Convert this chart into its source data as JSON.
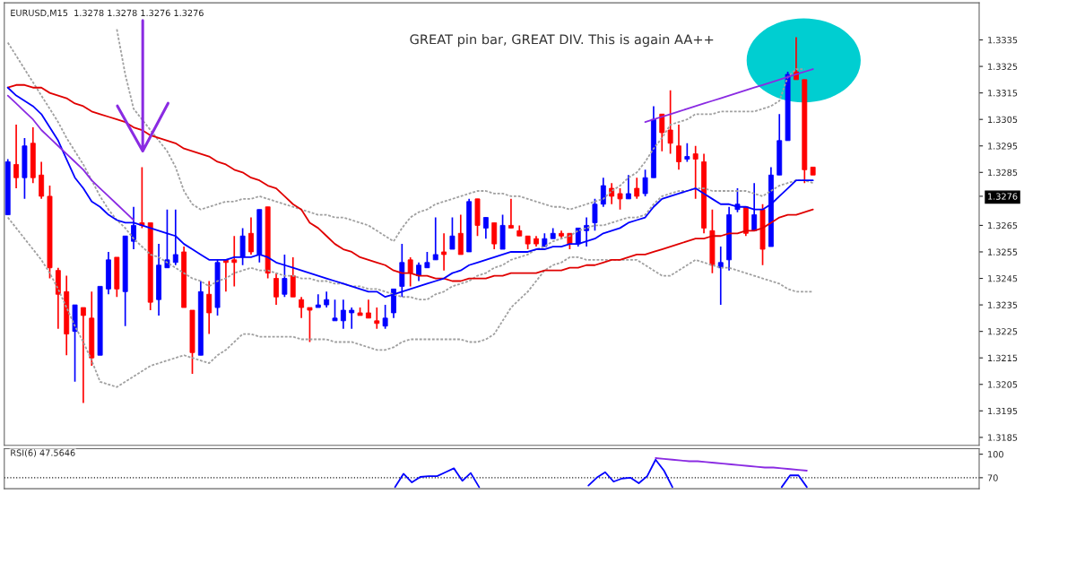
{
  "chart_data": [
    {
      "type": "candlestick",
      "title": "EURUSD,M15  1.3278 1.3278 1.3276 1.3276",
      "annotations": [
        "GREAT pin bar, GREAT DIV. This is again AA++"
      ],
      "categories": [
        null,
        null,
        null,
        null,
        null,
        null,
        null,
        null,
        null,
        null,
        null,
        null,
        null,
        null,
        null,
        null,
        null,
        null,
        null,
        null,
        null,
        null,
        null,
        null,
        null,
        null,
        null,
        null,
        null,
        null,
        null,
        null,
        null,
        null,
        null,
        null,
        null,
        null,
        null,
        null,
        null,
        null,
        null,
        null,
        null,
        null,
        null,
        null,
        null,
        null,
        null,
        null,
        null,
        null,
        null,
        null,
        null,
        null,
        null,
        null,
        null,
        null,
        null,
        null,
        null,
        null,
        null,
        null,
        null,
        null,
        null,
        null,
        null,
        null,
        null,
        null,
        null,
        null,
        null,
        null,
        null,
        null,
        null,
        null,
        null,
        null,
        null,
        null,
        null,
        null,
        null,
        null,
        null,
        null,
        null,
        null,
        null
      ],
      "ohlc": [
        [
          1.3269,
          1.329,
          1.3269,
          1.3289
        ],
        [
          1.3288,
          1.3303,
          1.3279,
          1.3283
        ],
        [
          1.3283,
          1.3298,
          1.3275,
          1.3295
        ],
        [
          1.3296,
          1.3302,
          1.3281,
          1.3283
        ],
        [
          1.3284,
          1.3289,
          1.3275,
          1.3276
        ],
        [
          1.3276,
          1.328,
          1.3245,
          1.3249
        ],
        [
          1.3248,
          1.3249,
          1.3226,
          1.3239
        ],
        [
          1.324,
          1.3246,
          1.3216,
          1.3224
        ],
        [
          1.3225,
          1.3235,
          1.3206,
          1.3235
        ],
        [
          1.3234,
          1.3234,
          1.3198,
          1.3231
        ],
        [
          1.323,
          1.324,
          1.3212,
          1.3215
        ],
        [
          1.3216,
          1.3242,
          1.3216,
          1.3242
        ],
        [
          1.3241,
          1.3255,
          1.3239,
          1.3252
        ],
        [
          1.3253,
          1.3253,
          1.3238,
          1.3241
        ],
        [
          1.324,
          1.3261,
          1.3227,
          1.3261
        ],
        [
          1.3259,
          1.3272,
          1.3256,
          1.3265
        ],
        [
          1.3266,
          1.3287,
          1.3264,
          1.3265
        ],
        [
          1.3266,
          1.3266,
          1.3233,
          1.3236
        ],
        [
          1.3237,
          1.3258,
          1.3231,
          1.325
        ],
        [
          1.3249,
          1.3271,
          1.3249,
          1.3252
        ],
        [
          1.3251,
          1.3271,
          1.325,
          1.3254
        ],
        [
          1.3255,
          1.3257,
          1.3234,
          1.3234
        ],
        [
          1.3233,
          1.3233,
          1.3209,
          1.3217
        ],
        [
          1.3216,
          1.3244,
          1.3216,
          1.324
        ],
        [
          1.3239,
          1.3244,
          1.3224,
          1.3232
        ],
        [
          1.3234,
          1.3252,
          1.3231,
          1.3251
        ],
        [
          1.3252,
          1.3252,
          1.324,
          1.3251
        ],
        [
          1.3252,
          1.3261,
          1.3242,
          1.3251
        ],
        [
          1.3253,
          1.3264,
          1.325,
          1.3261
        ],
        [
          1.3262,
          1.3268,
          1.3254,
          1.3255
        ],
        [
          1.3254,
          1.3271,
          1.3251,
          1.3271
        ],
        [
          1.3272,
          1.3272,
          1.3245,
          1.3247
        ],
        [
          1.3245,
          1.3247,
          1.3235,
          1.3238
        ],
        [
          1.3239,
          1.3254,
          1.3238,
          1.3245
        ],
        [
          1.3246,
          1.3253,
          1.3238,
          1.3238
        ],
        [
          1.3237,
          1.3238,
          1.323,
          1.3234
        ],
        [
          1.3234,
          1.3234,
          1.3221,
          1.3233
        ],
        [
          1.3234,
          1.3239,
          1.3234,
          1.3235
        ],
        [
          1.3235,
          1.324,
          1.3234,
          1.3237
        ],
        [
          1.3229,
          1.3237,
          1.3229,
          1.323
        ],
        [
          1.3229,
          1.3237,
          1.3226,
          1.3233
        ],
        [
          1.3232,
          1.3234,
          1.3226,
          1.3233
        ],
        [
          1.3232,
          1.3234,
          1.3231,
          1.3231
        ],
        [
          1.3232,
          1.3237,
          1.323,
          1.323
        ],
        [
          1.3229,
          1.3234,
          1.3226,
          1.3228
        ],
        [
          1.3227,
          1.3235,
          1.3226,
          1.323
        ],
        [
          1.3232,
          1.3241,
          1.323,
          1.3241
        ],
        [
          1.3242,
          1.3258,
          1.3238,
          1.3251
        ],
        [
          1.3252,
          1.3253,
          1.3242,
          1.3247
        ],
        [
          1.3246,
          1.3251,
          1.3244,
          1.325
        ],
        [
          1.3249,
          1.3255,
          1.3249,
          1.3251
        ],
        [
          1.3252,
          1.3268,
          1.3252,
          1.3254
        ],
        [
          1.3255,
          1.3262,
          1.3248,
          1.3254
        ],
        [
          1.3256,
          1.3268,
          1.3256,
          1.3261
        ],
        [
          1.3262,
          1.3269,
          1.3254,
          1.3254
        ],
        [
          1.3255,
          1.3275,
          1.3255,
          1.3274
        ],
        [
          1.3275,
          1.3275,
          1.3261,
          1.3265
        ],
        [
          1.3264,
          1.3268,
          1.326,
          1.3268
        ],
        [
          1.3266,
          1.3266,
          1.3256,
          1.3258
        ],
        [
          1.3256,
          1.3269,
          1.3256,
          1.3265
        ],
        [
          1.3265,
          1.3275,
          1.3264,
          1.3264
        ],
        [
          1.3263,
          1.3265,
          1.3261,
          1.3261
        ],
        [
          1.3261,
          1.3261,
          1.3256,
          1.3258
        ],
        [
          1.326,
          1.3261,
          1.3257,
          1.3258
        ],
        [
          1.3257,
          1.3262,
          1.3257,
          1.326
        ],
        [
          1.326,
          1.3264,
          1.326,
          1.3262
        ],
        [
          1.3262,
          1.3263,
          1.326,
          1.3261
        ],
        [
          1.3262,
          1.3262,
          1.3256,
          1.3258
        ],
        [
          1.3258,
          1.3264,
          1.3257,
          1.3264
        ],
        [
          1.3263,
          1.3268,
          1.3257,
          1.3265
        ],
        [
          1.3266,
          1.3275,
          1.3263,
          1.3273
        ],
        [
          1.3273,
          1.3283,
          1.3272,
          1.328
        ],
        [
          1.3279,
          1.3281,
          1.3273,
          1.3276
        ],
        [
          1.3277,
          1.3279,
          1.3271,
          1.3275
        ],
        [
          1.3275,
          1.3284,
          1.3275,
          1.3277
        ],
        [
          1.3279,
          1.3283,
          1.3275,
          1.3276
        ],
        [
          1.3277,
          1.3286,
          1.3276,
          1.3283
        ],
        [
          1.3283,
          1.331,
          1.3283,
          1.3305
        ],
        [
          1.3307,
          1.3307,
          1.3293,
          1.33
        ],
        [
          1.3301,
          1.3316,
          1.3292,
          1.3296
        ],
        [
          1.3295,
          1.3303,
          1.3286,
          1.3289
        ],
        [
          1.329,
          1.3296,
          1.3289,
          1.3291
        ],
        [
          1.3292,
          1.3295,
          1.3275,
          1.329
        ],
        [
          1.3289,
          1.3292,
          1.3262,
          1.3264
        ],
        [
          1.3263,
          1.3271,
          1.3247,
          1.325
        ],
        [
          1.3249,
          1.3257,
          1.3235,
          1.3251
        ],
        [
          1.3252,
          1.3272,
          1.3248,
          1.3269
        ],
        [
          1.3271,
          1.3279,
          1.327,
          1.3273
        ],
        [
          1.3272,
          1.3272,
          1.3261,
          1.3262
        ],
        [
          1.3263,
          1.3281,
          1.3263,
          1.3269
        ],
        [
          1.3271,
          1.3273,
          1.325,
          1.3256
        ],
        [
          1.3257,
          1.3287,
          1.3257,
          1.3284
        ],
        [
          1.3284,
          1.3307,
          1.3284,
          1.3297
        ],
        [
          1.3297,
          1.3323,
          1.3297,
          1.3322
        ],
        [
          1.3323,
          1.3336,
          1.332,
          1.332
        ],
        [
          1.332,
          1.332,
          1.3281,
          1.3286
        ],
        [
          1.3287,
          1.3287,
          1.3284,
          1.3284
        ]
      ],
      "colors": [
        "#0000ff",
        "#ff0000",
        "#0000ff",
        "#ff0000",
        "#ff0000",
        "#ff0000",
        "#ff0000",
        "#ff0000",
        "#0000ff",
        "#ff0000",
        "#ff0000",
        "#0000ff",
        "#0000ff",
        "#ff0000",
        "#0000ff",
        "#0000ff",
        "#ff0000",
        "#ff0000",
        "#0000ff",
        "#0000ff",
        "#0000ff",
        "#ff0000",
        "#ff0000",
        "#0000ff",
        "#ff0000",
        "#0000ff",
        "#ff0000",
        "#ff0000",
        "#0000ff",
        "#ff0000",
        "#0000ff",
        "#ff0000",
        "#ff0000",
        "#0000ff",
        "#ff0000",
        "#ff0000",
        "#ff0000",
        "#0000ff",
        "#0000ff",
        "#0000ff",
        "#0000ff",
        "#0000ff",
        "#ff0000",
        "#ff0000",
        "#ff0000",
        "#0000ff",
        "#0000ff",
        "#0000ff",
        "#ff0000",
        "#0000ff",
        "#0000ff",
        "#0000ff",
        "#ff0000",
        "#0000ff",
        "#ff0000",
        "#0000ff",
        "#ff0000",
        "#0000ff",
        "#ff0000",
        "#0000ff",
        "#ff0000",
        "#ff0000",
        "#ff0000",
        "#ff0000",
        "#0000ff",
        "#0000ff",
        "#ff0000",
        "#ff0000",
        "#0000ff",
        "#0000ff",
        "#0000ff",
        "#0000ff",
        "#ff0000",
        "#ff0000",
        "#0000ff",
        "#ff0000",
        "#0000ff",
        "#0000ff",
        "#ff0000",
        "#ff0000",
        "#ff0000",
        "#0000ff",
        "#ff0000",
        "#ff0000",
        "#ff0000",
        "#0000ff",
        "#0000ff",
        "#0000ff",
        "#ff0000",
        "#0000ff",
        "#ff0000",
        "#0000ff",
        "#0000ff",
        "#0000ff",
        "#ff0000",
        "#ff0000",
        "#ff0000"
      ],
      "series": [
        {
          "type": "line",
          "color": "#a0a0a0",
          "line_style": "dashed",
          "values": [
            null,
            null,
            null,
            null,
            null,
            null,
            null,
            null,
            null,
            null,
            null,
            null,
            null,
            1.3339,
            1.3322,
            1.3309,
            1.3305,
            1.3301,
            1.3297,
            1.3293,
            1.3287,
            1.3278,
            1.3273,
            1.3271,
            1.3272,
            1.3273,
            1.3274,
            1.3274,
            1.3275,
            1.3275,
            1.3276,
            1.3275,
            1.3274,
            1.3273,
            1.3272,
            1.3271,
            1.327,
            1.3269,
            1.3269,
            1.3268,
            1.3268,
            1.3267,
            1.3266,
            1.3265,
            1.3263,
            1.3261,
            1.3259,
            1.3264,
            1.3268,
            1.327,
            1.3271,
            1.3273,
            1.3274,
            1.3275,
            1.3276,
            1.3277,
            1.3278,
            1.3278,
            1.3277,
            1.3277,
            1.3276,
            1.3276,
            1.3275,
            1.3274,
            1.3273,
            1.3272,
            1.3272,
            1.3271,
            1.3272,
            1.3273,
            1.3274,
            1.3275,
            1.3278,
            1.328,
            1.3283,
            1.3285,
            1.3289,
            1.3294,
            1.3298,
            1.3303,
            1.3304,
            1.3305,
            1.3307,
            1.3307,
            1.3307,
            1.3308,
            1.3308,
            1.3308,
            1.3308,
            1.3308,
            1.3309,
            1.331,
            1.3312,
            1.3321,
            1.3324,
            1.3324,
            null
          ]
        },
        {
          "type": "line",
          "color": "#a0a0a0",
          "line_style": "dashed",
          "values": [
            1.3334,
            1.3329,
            1.3324,
            1.3319,
            1.3314,
            1.3309,
            1.3304,
            1.3298,
            1.3293,
            1.3288,
            1.3282,
            1.3276,
            1.3271,
            1.3267,
            1.3264,
            1.326,
            1.3257,
            1.3254,
            1.3253,
            1.3251,
            1.3249,
            1.3247,
            1.3245,
            1.3244,
            1.3242,
            1.3244,
            1.3245,
            1.3247,
            1.3248,
            1.3249,
            1.3248,
            1.3248,
            1.3247,
            1.3246,
            1.3246,
            1.3245,
            1.3245,
            1.3244,
            1.3244,
            1.3243,
            1.3243,
            1.3242,
            1.3242,
            1.3241,
            1.3241,
            1.324,
            1.3239,
            1.3238,
            1.3238,
            1.3237,
            1.3237,
            1.3239,
            1.324,
            1.3242,
            1.3243,
            1.3244,
            1.3246,
            1.3247,
            1.3249,
            1.325,
            1.3252,
            1.3253,
            1.3254,
            1.3256,
            1.3257,
            1.3259,
            1.326,
            1.3261,
            1.3263,
            1.3264,
            1.3265,
            1.3265,
            1.3266,
            1.3267,
            1.3268,
            1.3268,
            1.3269,
            1.3273,
            1.3276,
            1.3277,
            1.3278,
            1.3278,
            1.3279,
            1.3279,
            1.3278,
            1.3278,
            1.3278,
            1.3278,
            1.3278,
            1.3277,
            1.3276,
            1.3278,
            1.328,
            1.3281,
            1.3282,
            1.3282,
            1.3281
          ]
        },
        {
          "type": "line",
          "color": "#a0a0a0",
          "line_style": "dashed",
          "values": [
            1.3268,
            1.3264,
            1.326,
            1.3256,
            1.3252,
            1.3247,
            1.3241,
            1.3234,
            1.3227,
            1.3221,
            1.3214,
            1.3206,
            1.3205,
            1.3204,
            1.3206,
            1.3208,
            1.321,
            1.3212,
            1.3213,
            1.3214,
            1.3215,
            1.3216,
            1.3215,
            1.3214,
            1.3213,
            1.3216,
            1.3218,
            1.3221,
            1.3224,
            1.3224,
            1.3223,
            1.3223,
            1.3223,
            1.3223,
            1.3223,
            1.3222,
            1.3222,
            1.3222,
            1.3222,
            1.3221,
            1.3221,
            1.3221,
            1.322,
            1.3219,
            1.3218,
            1.3218,
            1.3219,
            1.3221,
            1.3222,
            1.3222,
            1.3222,
            1.3222,
            1.3222,
            1.3222,
            1.3222,
            1.3221,
            1.3221,
            1.3222,
            1.3224,
            1.3229,
            1.3234,
            1.3237,
            1.324,
            1.3244,
            1.3248,
            1.325,
            1.3251,
            1.3253,
            1.3253,
            1.3252,
            1.3252,
            1.3252,
            1.3252,
            1.3252,
            1.3252,
            1.3252,
            1.325,
            1.3248,
            1.3246,
            1.3246,
            1.3248,
            1.325,
            1.3252,
            1.3251,
            1.325,
            1.3249,
            1.3249,
            1.3248,
            1.3247,
            1.3246,
            1.3245,
            1.3244,
            1.3243,
            1.3241,
            1.324,
            1.324,
            1.324
          ]
        },
        {
          "type": "line",
          "color": "#e00000",
          "line_style": "solid",
          "values": [
            1.3317,
            1.3318,
            1.3318,
            1.3317,
            1.3317,
            1.3315,
            1.3314,
            1.3313,
            1.3311,
            1.331,
            1.3308,
            1.3307,
            1.3306,
            1.3305,
            1.3304,
            1.3302,
            1.3301,
            1.3299,
            1.3298,
            1.3297,
            1.3296,
            1.3294,
            1.3293,
            1.3292,
            1.3291,
            1.3289,
            1.3288,
            1.3286,
            1.3285,
            1.3283,
            1.3282,
            1.328,
            1.3279,
            1.3276,
            1.3273,
            1.3271,
            1.3266,
            1.3264,
            1.3261,
            1.3258,
            1.3256,
            1.3255,
            1.3253,
            1.3252,
            1.3251,
            1.325,
            1.3248,
            1.3247,
            1.3247,
            1.3246,
            1.3246,
            1.3245,
            1.3245,
            1.3244,
            1.3244,
            1.3245,
            1.3245,
            1.3245,
            1.3246,
            1.3246,
            1.3247,
            1.3247,
            1.3247,
            1.3247,
            1.3248,
            1.3248,
            1.3248,
            1.3249,
            1.3249,
            1.325,
            1.325,
            1.3251,
            1.3252,
            1.3252,
            1.3253,
            1.3254,
            1.3254,
            1.3255,
            1.3256,
            1.3257,
            1.3258,
            1.3259,
            1.326,
            1.326,
            1.3261,
            1.3261,
            1.3262,
            1.3262,
            1.3263,
            1.3263,
            1.3264,
            1.3266,
            1.3268,
            1.3269,
            1.3269,
            1.327,
            1.3271
          ]
        },
        {
          "type": "line",
          "color": "#0000ff",
          "line_style": "solid",
          "values": [
            1.3317,
            1.3314,
            1.3312,
            1.331,
            1.3307,
            1.3302,
            1.3297,
            1.329,
            1.3283,
            1.3279,
            1.3274,
            1.3272,
            1.3269,
            1.3267,
            1.3266,
            1.3266,
            1.3265,
            1.3264,
            1.3263,
            1.3262,
            1.3261,
            1.3258,
            1.3256,
            1.3254,
            1.3252,
            1.3252,
            1.3252,
            1.3253,
            1.3253,
            1.3253,
            1.3254,
            1.3253,
            1.3251,
            1.325,
            1.3249,
            1.3248,
            1.3247,
            1.3246,
            1.3245,
            1.3244,
            1.3243,
            1.3242,
            1.3241,
            1.324,
            1.324,
            1.3238,
            1.3239,
            1.324,
            1.3241,
            1.3242,
            1.3243,
            1.3244,
            1.3245,
            1.3247,
            1.3248,
            1.325,
            1.3251,
            1.3252,
            1.3253,
            1.3254,
            1.3255,
            1.3255,
            1.3255,
            1.3256,
            1.3256,
            1.3257,
            1.3257,
            1.3258,
            1.3258,
            1.3259,
            1.326,
            1.3262,
            1.3263,
            1.3264,
            1.3266,
            1.3267,
            1.3268,
            1.3272,
            1.3275,
            1.3276,
            1.3277,
            1.3278,
            1.3279,
            1.3277,
            1.3275,
            1.3273,
            1.3273,
            1.3272,
            1.3272,
            1.3271,
            1.3271,
            1.3273,
            1.3276,
            1.3279,
            1.3282,
            1.3282,
            1.3282
          ]
        },
        {
          "type": "line",
          "color": "#8a2be2",
          "line_style": "solid",
          "values": [
            1.3314,
            1.3311,
            1.3308,
            1.3305,
            1.3301,
            1.3298,
            1.3295,
            1.3292,
            1.3289,
            1.3286,
            1.3282,
            1.3279,
            1.3276,
            1.3273,
            1.327,
            1.3267,
            null,
            null,
            null,
            null,
            null,
            null,
            null,
            null,
            null,
            null,
            null,
            null,
            null,
            null,
            null,
            null,
            null,
            null,
            null,
            null,
            null,
            null,
            null,
            null,
            null,
            null,
            null,
            null,
            null,
            null,
            null,
            null,
            null,
            null,
            null,
            null,
            null,
            null,
            null,
            null,
            null,
            null,
            null,
            null,
            null,
            null,
            null,
            null,
            null,
            null,
            null,
            null,
            null,
            null,
            null,
            null,
            null,
            null,
            null,
            null,
            null,
            null,
            null,
            null,
            null,
            null,
            null,
            null,
            null,
            null,
            null,
            null,
            null,
            null,
            null,
            null,
            null,
            null,
            null,
            null,
            null
          ]
        },
        {
          "type": "line",
          "color": "#8a2be2",
          "line_style": "solid",
          "values": [
            null,
            null,
            null,
            null,
            null,
            null,
            null,
            null,
            null,
            null,
            null,
            null,
            null,
            null,
            null,
            null,
            null,
            null,
            null,
            null,
            null,
            null,
            null,
            null,
            null,
            null,
            null,
            null,
            null,
            null,
            null,
            null,
            null,
            null,
            null,
            null,
            null,
            null,
            null,
            null,
            null,
            null,
            null,
            null,
            null,
            null,
            null,
            null,
            null,
            null,
            null,
            null,
            null,
            null,
            null,
            null,
            null,
            null,
            null,
            null,
            null,
            null,
            null,
            null,
            null,
            null,
            null,
            null,
            null,
            null,
            null,
            null,
            null,
            null,
            null,
            null,
            1.3304,
            1.3305,
            1.3306,
            1.3307,
            1.3308,
            1.3309,
            1.331,
            1.3311,
            1.3312,
            1.3313,
            1.3314,
            1.3315,
            1.3316,
            1.3317,
            1.3318,
            1.3319,
            1.332,
            1.3321,
            1.3322,
            1.3323,
            1.3324
          ]
        }
      ],
      "ylim": [
        1.3182,
        1.3349
      ],
      "yticks": [
        1.3185,
        1.3195,
        1.3205,
        1.3215,
        1.3225,
        1.3235,
        1.3245,
        1.3255,
        1.3265,
        {
          "value": 1.3276,
          "label": "1.3276"
        },
        1.3285,
        1.3295,
        1.3305,
        1.3315,
        1.3325,
        1.3335
      ],
      "tick_labels": "y",
      "grid": false
    },
    {
      "type": "line",
      "title": "RSI(6) 47.5646",
      "categories": [
        null,
        null,
        null,
        null,
        null,
        null,
        null,
        null,
        null,
        null,
        null,
        null,
        null,
        null,
        null,
        null,
        null,
        null,
        null,
        null,
        null,
        null,
        null,
        null,
        null,
        null,
        null,
        null,
        null,
        null,
        null,
        null,
        null,
        null,
        null,
        null,
        null,
        null,
        null,
        null,
        null,
        null,
        null,
        null,
        null,
        null,
        null,
        null,
        null,
        null,
        null,
        null,
        null,
        null,
        null,
        null,
        null,
        null,
        null,
        null,
        null,
        null,
        null,
        null,
        null,
        null,
        null,
        null,
        null,
        null,
        null,
        null,
        null,
        null,
        null,
        null,
        null,
        null,
        null,
        null,
        null,
        null,
        null,
        null,
        null,
        null,
        null,
        null,
        null,
        null,
        null,
        null,
        null,
        null,
        null,
        null,
        null,
        null,
        null,
        null,
        null,
        null,
        null,
        null,
        null,
        null,
        null,
        null,
        null,
        null,
        null,
        null,
        null,
        null,
        null,
        null
      ],
      "series": [
        {
          "color": "#0000ff",
          "line_style": "solid",
          "values": [
            null,
            null,
            null,
            null,
            null,
            null,
            null,
            null,
            null,
            null,
            null,
            null,
            null,
            null,
            null,
            null,
            null,
            null,
            null,
            null,
            null,
            null,
            null,
            null,
            null,
            null,
            null,
            null,
            null,
            null,
            null,
            null,
            null,
            null,
            null,
            null,
            null,
            null,
            null,
            null,
            null,
            null,
            null,
            null,
            null,
            null,
            58,
            75,
            64,
            71,
            72,
            72,
            77,
            82,
            66,
            76,
            58,
            null,
            null,
            null,
            null,
            null,
            null,
            null,
            null,
            null,
            null,
            null,
            null,
            null,
            null,
            null,
            null,
            null,
            null,
            null,
            null,
            null,
            null,
            null,
            null,
            null,
            null,
            null,
            null,
            null,
            null,
            null,
            null,
            null,
            null,
            null,
            null,
            null,
            null,
            null,
            null,
            null,
            null,
            null,
            null,
            null,
            null,
            null,
            null,
            null,
            null,
            null,
            null,
            null,
            null,
            null,
            null,
            null,
            null,
            null
          ]
        },
        {
          "color": "#0000ff",
          "line_style": "solid",
          "values": [
            null,
            null,
            null,
            null,
            null,
            null,
            null,
            null,
            null,
            null,
            null,
            null,
            null,
            null,
            null,
            null,
            null,
            null,
            null,
            null,
            null,
            null,
            null,
            null,
            null,
            null,
            null,
            null,
            null,
            null,
            null,
            null,
            null,
            null,
            null,
            null,
            null,
            null,
            null,
            null,
            null,
            null,
            null,
            null,
            null,
            null,
            null,
            null,
            null,
            null,
            null,
            null,
            null,
            null,
            null,
            null,
            null,
            null,
            null,
            null,
            null,
            null,
            null,
            null,
            null,
            null,
            null,
            null,
            null,
            60,
            70,
            77,
            65,
            69,
            70,
            63,
            72,
            93,
            79,
            58,
            null,
            null,
            null,
            null,
            null,
            null,
            null,
            null,
            null,
            null,
            null,
            null,
            null,
            null,
            null,
            null,
            null,
            null,
            null,
            null,
            null,
            null,
            null,
            null,
            null,
            null,
            null,
            null,
            null,
            null,
            null,
            null,
            null,
            null,
            null,
            null
          ]
        },
        {
          "color": "#0000ff",
          "line_style": "solid",
          "values": [
            null,
            null,
            null,
            null,
            null,
            null,
            null,
            null,
            null,
            null,
            null,
            null,
            null,
            null,
            null,
            null,
            null,
            null,
            null,
            null,
            null,
            null,
            null,
            null,
            null,
            null,
            null,
            null,
            null,
            null,
            null,
            null,
            null,
            null,
            null,
            null,
            null,
            null,
            null,
            null,
            null,
            null,
            null,
            null,
            null,
            null,
            null,
            null,
            null,
            null,
            null,
            null,
            null,
            null,
            null,
            null,
            null,
            null,
            null,
            null,
            null,
            null,
            null,
            null,
            null,
            null,
            null,
            null,
            null,
            null,
            null,
            null,
            null,
            null,
            null,
            null,
            null,
            null,
            null,
            null,
            null,
            null,
            null,
            null,
            null,
            null,
            null,
            null,
            null,
            null,
            null,
            null,
            58,
            73,
            73,
            58,
            null,
            null,
            null,
            null,
            null,
            null,
            null,
            null,
            null,
            null,
            null,
            null,
            null,
            null,
            null,
            null,
            null,
            null,
            null,
            null
          ]
        },
        {
          "color": "#8a2be2",
          "line_style": "solid",
          "values": [
            null,
            null,
            null,
            null,
            null,
            null,
            null,
            null,
            null,
            null,
            null,
            null,
            null,
            null,
            null,
            null,
            null,
            null,
            null,
            null,
            null,
            null,
            null,
            null,
            null,
            null,
            null,
            null,
            null,
            null,
            null,
            null,
            null,
            null,
            null,
            null,
            null,
            null,
            null,
            null,
            null,
            null,
            null,
            null,
            null,
            null,
            null,
            null,
            null,
            null,
            null,
            null,
            null,
            null,
            null,
            null,
            null,
            null,
            null,
            null,
            null,
            null,
            null,
            null,
            null,
            null,
            null,
            null,
            null,
            null,
            null,
            null,
            null,
            null,
            null,
            null,
            null,
            95,
            94,
            93,
            92,
            91,
            91,
            90,
            89,
            88,
            87,
            86,
            85,
            84,
            83,
            83,
            82,
            81,
            80,
            79,
            null,
            null,
            null,
            null,
            null,
            null,
            null,
            null,
            null,
            null,
            null,
            null,
            null,
            null,
            null,
            null,
            null,
            null,
            null,
            null
          ]
        }
      ],
      "ref_lines": [
        {
          "axis": "y",
          "value": 70,
          "line_style": "dotted",
          "color": "#000000"
        }
      ],
      "ylim": [
        56,
        107
      ],
      "yticks": [
        70,
        100
      ],
      "tick_labels": "y",
      "grid": false
    }
  ]
}
